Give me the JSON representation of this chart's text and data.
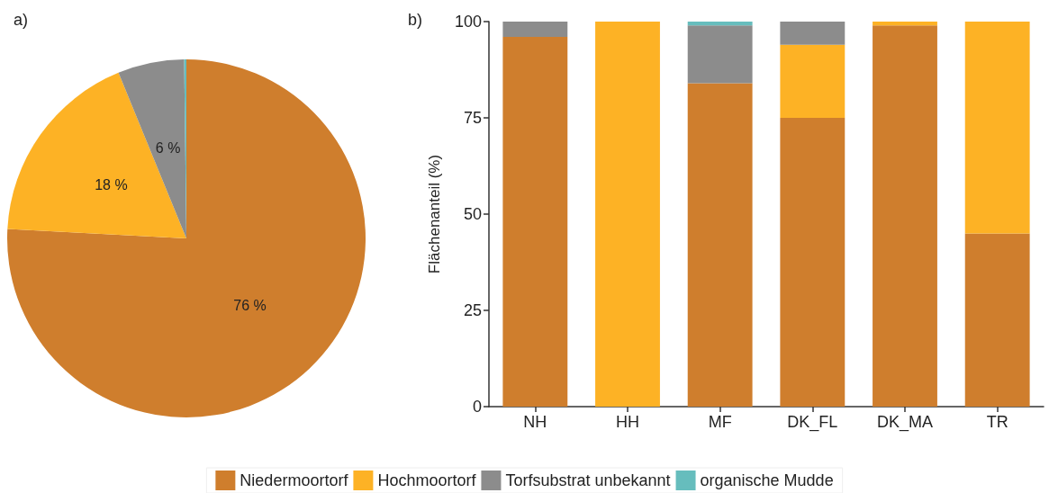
{
  "chart_data": [
    {
      "type": "pie",
      "title": "a)",
      "categories": [
        "Niedermoortorf",
        "Hochmoortorf",
        "Torfsubstrat unbekannt",
        "organische Mudde"
      ],
      "values": [
        76,
        18,
        6,
        0.2
      ],
      "colors": [
        "#cf7e2d",
        "#fdb225",
        "#8c8c8c",
        "#66bdbd"
      ],
      "value_labels": [
        "76 %",
        "18 %",
        "6 %",
        null
      ],
      "legend": "bottom"
    },
    {
      "type": "bar",
      "title": "b)",
      "ylabel": "Flächenanteil (%)",
      "categories": [
        "NH",
        "HH",
        "MF",
        "DK_FL",
        "DK_MA",
        "TR"
      ],
      "stacked": true,
      "ylim": [
        0,
        100
      ],
      "yticks": [
        0,
        25,
        50,
        75,
        100
      ],
      "grid": false,
      "series": [
        {
          "color": "#cf7e2d",
          "values": [
            96,
            0,
            84,
            75,
            99,
            45
          ]
        },
        {
          "color": "#fdb225",
          "values": [
            0,
            100,
            0,
            19,
            1,
            55
          ]
        },
        {
          "color": "#8c8c8c",
          "values": [
            4,
            0,
            15,
            6,
            0,
            0
          ]
        },
        {
          "color": "#66bdbd",
          "values": [
            0,
            0,
            1,
            0,
            0,
            0
          ]
        }
      ]
    }
  ]
}
